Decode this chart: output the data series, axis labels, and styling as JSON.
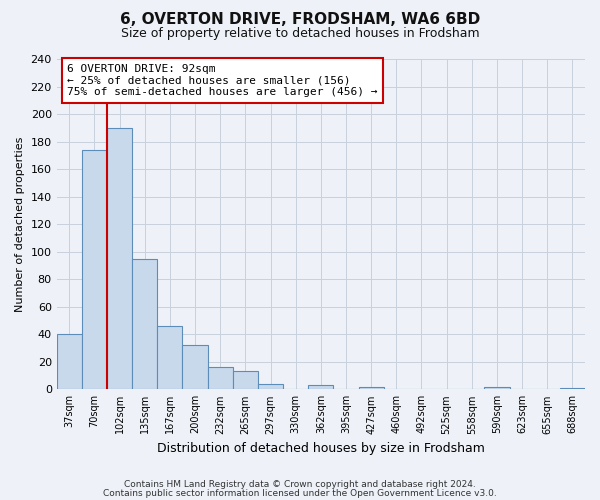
{
  "title": "6, OVERTON DRIVE, FRODSHAM, WA6 6BD",
  "subtitle": "Size of property relative to detached houses in Frodsham",
  "xlabel": "Distribution of detached houses by size in Frodsham",
  "ylabel": "Number of detached properties",
  "bar_labels": [
    "37sqm",
    "70sqm",
    "102sqm",
    "135sqm",
    "167sqm",
    "200sqm",
    "232sqm",
    "265sqm",
    "297sqm",
    "330sqm",
    "362sqm",
    "395sqm",
    "427sqm",
    "460sqm",
    "492sqm",
    "525sqm",
    "558sqm",
    "590sqm",
    "623sqm",
    "655sqm",
    "688sqm"
  ],
  "bar_values": [
    40,
    174,
    190,
    95,
    46,
    32,
    16,
    13,
    4,
    0,
    3,
    0,
    2,
    0,
    0,
    0,
    0,
    2,
    0,
    0,
    1
  ],
  "bar_color": "#c9d9ec",
  "bar_edge_color": "#5b8db8",
  "vline_color": "#cc0000",
  "annotation_text": "6 OVERTON DRIVE: 92sqm\n← 25% of detached houses are smaller (156)\n75% of semi-detached houses are larger (456) →",
  "annotation_box_color": "#ffffff",
  "annotation_box_edge": "#cc0000",
  "ylim": [
    0,
    240
  ],
  "yticks": [
    0,
    20,
    40,
    60,
    80,
    100,
    120,
    140,
    160,
    180,
    200,
    220,
    240
  ],
  "grid_color": "#c8d0dc",
  "bg_color": "#eef2f8",
  "footer1": "Contains HM Land Registry data © Crown copyright and database right 2024.",
  "footer2": "Contains public sector information licensed under the Open Government Licence v3.0."
}
